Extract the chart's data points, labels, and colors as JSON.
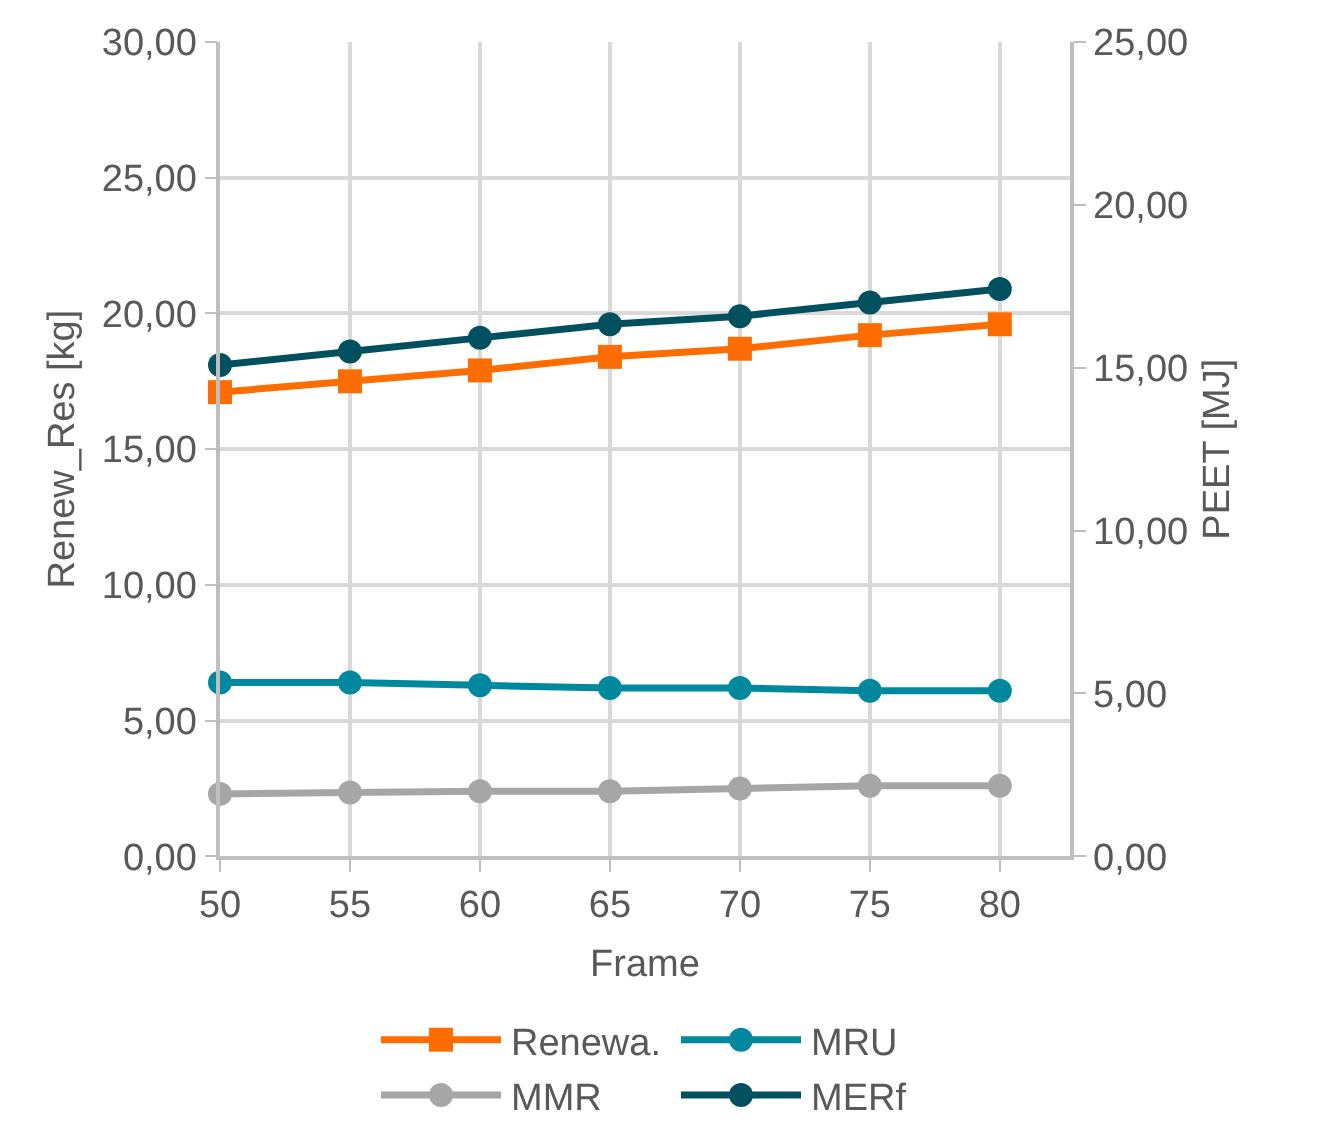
{
  "chart_data": {
    "type": "line",
    "xlabel": "Frame",
    "ylabel": "Renew_Res [kg]",
    "y2label": "PEET [MJ]",
    "x": [
      50,
      55,
      60,
      65,
      70,
      75,
      80
    ],
    "xlim": [
      50,
      82.7
    ],
    "xticks": [
      50,
      55,
      60,
      65,
      70,
      75,
      80
    ],
    "ylim": [
      0,
      30
    ],
    "yticks": [
      {
        "value": 0,
        "label": "0,00"
      },
      {
        "value": 5,
        "label": "5,00"
      },
      {
        "value": 10,
        "label": "10,00"
      },
      {
        "value": 15,
        "label": "15,00"
      },
      {
        "value": 20,
        "label": "20,00"
      },
      {
        "value": 25,
        "label": "25,00"
      },
      {
        "value": 30,
        "label": "30,00"
      }
    ],
    "y2lim": [
      0,
      25
    ],
    "y2ticks": [
      {
        "value": 0,
        "label": "0,00"
      },
      {
        "value": 5,
        "label": "5,00"
      },
      {
        "value": 10,
        "label": "10,00"
      },
      {
        "value": 15,
        "label": "15,00"
      },
      {
        "value": 20,
        "label": "20,00"
      },
      {
        "value": 25,
        "label": "25,00"
      }
    ],
    "grid": true,
    "legend": "bottom",
    "line_style": "solid",
    "series": [
      {
        "name": "Renewa.",
        "color": "#ff6d00",
        "marker": "square",
        "values": [
          17.1,
          17.5,
          17.9,
          18.4,
          18.7,
          19.2,
          19.6
        ]
      },
      {
        "name": "MRU",
        "color": "#00899e",
        "marker": "circle",
        "values": [
          6.4,
          6.4,
          6.3,
          6.2,
          6.2,
          6.1,
          6.1
        ]
      },
      {
        "name": "MMR",
        "color": "#a6a6a6",
        "marker": "circle",
        "values": [
          2.3,
          2.35,
          2.4,
          2.4,
          2.5,
          2.6,
          2.6
        ]
      },
      {
        "name": "MERf",
        "color": "#005060",
        "marker": "circle",
        "values": [
          18.1,
          18.6,
          19.1,
          19.6,
          19.9,
          20.4,
          20.9
        ]
      }
    ]
  }
}
